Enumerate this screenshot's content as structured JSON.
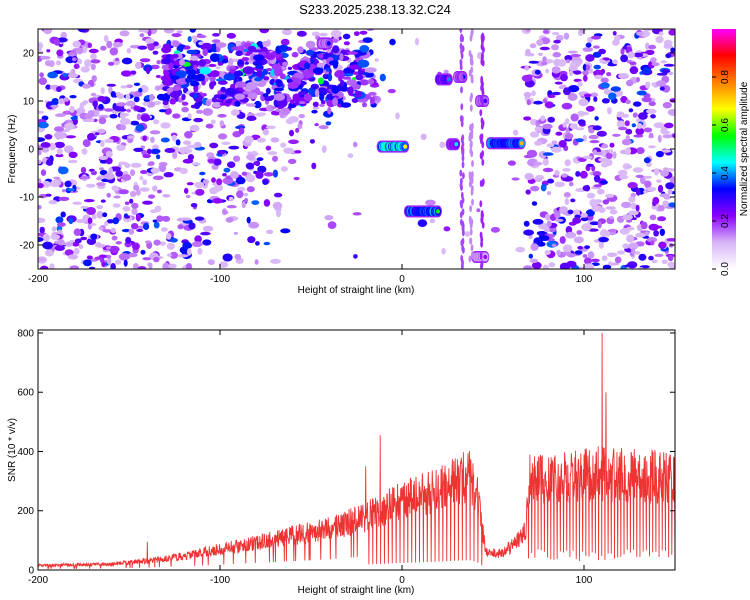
{
  "title": "S233.2025.238.13.32.C24",
  "chart_data": [
    {
      "type": "heatmap",
      "xlabel": "Height of straight line (km)",
      "ylabel": "Frequency (Hz)",
      "xlim": [
        -200,
        150
      ],
      "ylim": [
        -25,
        25
      ],
      "xticks": [
        -200,
        -100,
        0,
        100
      ],
      "yticks": [
        -20,
        -10,
        0,
        10,
        20
      ],
      "colorbar": {
        "label": "Normalized spectral amplitude",
        "range": [
          0.0,
          1.0
        ],
        "ticks": [
          0.0,
          0.2,
          0.4,
          0.6,
          0.8
        ],
        "tick_labels": [
          "0.0",
          "0.2",
          "0.4",
          "0.6",
          "0.8"
        ],
        "colors": [
          "#ffffff",
          "#d7b4f6",
          "#8b00ff",
          "#0000ff",
          "#00ffff",
          "#00ff00",
          "#ffff00",
          "#ff8000",
          "#ff0000",
          "#ff00ff"
        ]
      },
      "features": [
        {
          "x_range": [
            -130,
            -15
          ],
          "freq_range": [
            9,
            22
          ],
          "amplitude": 0.25,
          "note": "diffuse band"
        },
        {
          "x_range": [
            -12,
            2
          ],
          "freq": 0.5,
          "amplitude": 0.9
        },
        {
          "x_range": [
            3,
            20
          ],
          "freq": -13,
          "amplitude": 0.8
        },
        {
          "x_range": [
            20,
            26
          ],
          "freq": 14.5,
          "amplitude": 0.55
        },
        {
          "x_range": [
            26,
            30
          ],
          "freq": 1,
          "amplitude": 0.45
        },
        {
          "x_range": [
            30,
            34
          ],
          "freq": 15,
          "amplitude": 0.4
        },
        {
          "x_range": [
            42,
            46
          ],
          "freq": 10,
          "amplitude": 0.4
        },
        {
          "x_range": [
            48,
            66
          ],
          "freq": 1.2,
          "amplitude": 0.75
        },
        {
          "x_range": [
            40,
            46
          ],
          "freq": -22.5,
          "amplitude": 0.3
        },
        {
          "x_range": [
            -45,
            -40
          ],
          "freq": 22,
          "amplitude": 0.35
        }
      ]
    },
    {
      "type": "line",
      "xlabel": "Height of straight line (km)",
      "ylabel": "SNR (10 * v/v)",
      "xlim": [
        -200,
        150
      ],
      "ylim": [
        0,
        810
      ],
      "xticks": [
        -200,
        -100,
        0,
        100
      ],
      "yticks": [
        0,
        200,
        400,
        600,
        800
      ],
      "color": "#ee3333",
      "envelope": [
        {
          "x": -200,
          "snr": 20
        },
        {
          "x": -160,
          "snr": 25
        },
        {
          "x": -140,
          "snr": 40
        },
        {
          "x": -120,
          "snr": 60
        },
        {
          "x": -100,
          "snr": 90
        },
        {
          "x": -80,
          "snr": 120
        },
        {
          "x": -60,
          "snr": 150
        },
        {
          "x": -40,
          "snr": 180
        },
        {
          "x": -20,
          "snr": 230
        },
        {
          "x": 0,
          "snr": 300
        },
        {
          "x": 20,
          "snr": 350
        },
        {
          "x": 30,
          "snr": 395
        },
        {
          "x": 38,
          "snr": 410
        },
        {
          "x": 42,
          "snr": 300
        },
        {
          "x": 46,
          "snr": 80
        },
        {
          "x": 55,
          "snr": 70
        },
        {
          "x": 64,
          "snr": 130
        },
        {
          "x": 68,
          "snr": 180
        },
        {
          "x": 70,
          "snr": 390
        },
        {
          "x": 90,
          "snr": 400
        },
        {
          "x": 110,
          "snr": 420
        },
        {
          "x": 130,
          "snr": 410
        },
        {
          "x": 150,
          "snr": 400
        }
      ],
      "spikes": [
        {
          "x": -140,
          "snr": 95
        },
        {
          "x": -20,
          "snr": 350
        },
        {
          "x": -12,
          "snr": 455
        },
        {
          "x": 110,
          "snr": 800
        },
        {
          "x": 112,
          "snr": 600
        }
      ]
    }
  ]
}
